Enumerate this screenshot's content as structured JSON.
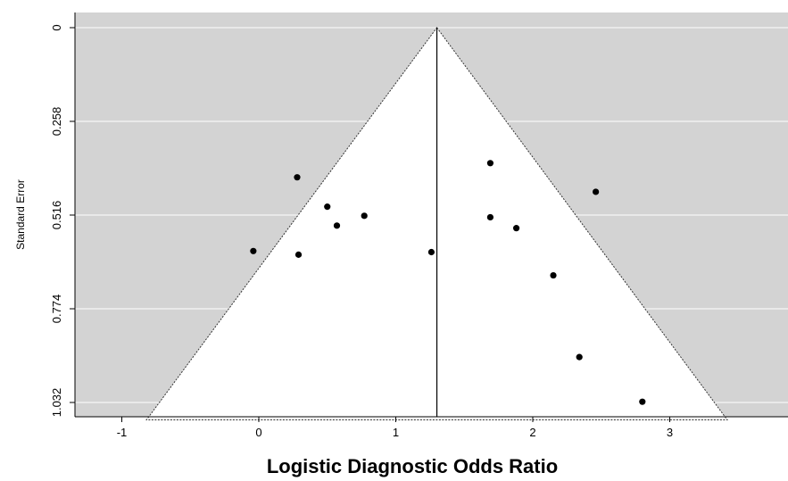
{
  "chart_data": {
    "type": "scatter",
    "title": "",
    "xlabel": "Logistic Diagnostic Odds Ratio",
    "ylabel": "Standard Error",
    "xlim": [
      -1.3,
      3.85
    ],
    "ylim": [
      1.032,
      0
    ],
    "y_reversed": true,
    "x_ticks": [
      -1,
      0,
      1,
      2,
      3
    ],
    "x_tick_labels": [
      "-1",
      "0",
      "1",
      "2",
      "3"
    ],
    "y_ticks": [
      0,
      0.258,
      0.516,
      0.774,
      1.032
    ],
    "y_tick_labels": [
      "0",
      "0.258",
      "0.516",
      "0.774",
      "1.032"
    ],
    "grid": "horizontal",
    "summary_estimate": 1.3,
    "funnel": {
      "apex": [
        1.3,
        0
      ],
      "base_left": [
        -0.82,
        1.08
      ],
      "base_right": [
        3.42,
        1.08
      ]
    },
    "points": [
      {
        "x": -0.04,
        "y": 0.615
      },
      {
        "x": 0.28,
        "y": 0.412
      },
      {
        "x": 0.29,
        "y": 0.625
      },
      {
        "x": 0.5,
        "y": 0.493
      },
      {
        "x": 0.57,
        "y": 0.545
      },
      {
        "x": 0.77,
        "y": 0.518
      },
      {
        "x": 1.26,
        "y": 0.618
      },
      {
        "x": 1.69,
        "y": 0.373
      },
      {
        "x": 1.69,
        "y": 0.522
      },
      {
        "x": 1.88,
        "y": 0.552
      },
      {
        "x": 2.15,
        "y": 0.682
      },
      {
        "x": 2.34,
        "y": 0.907
      },
      {
        "x": 2.46,
        "y": 0.452
      },
      {
        "x": 2.8,
        "y": 1.03
      }
    ],
    "colors": {
      "panel": "#d3d3d3",
      "funnel": "#ffffff",
      "grid": "#ffffff",
      "point": "#000000",
      "line": "#000000"
    }
  }
}
